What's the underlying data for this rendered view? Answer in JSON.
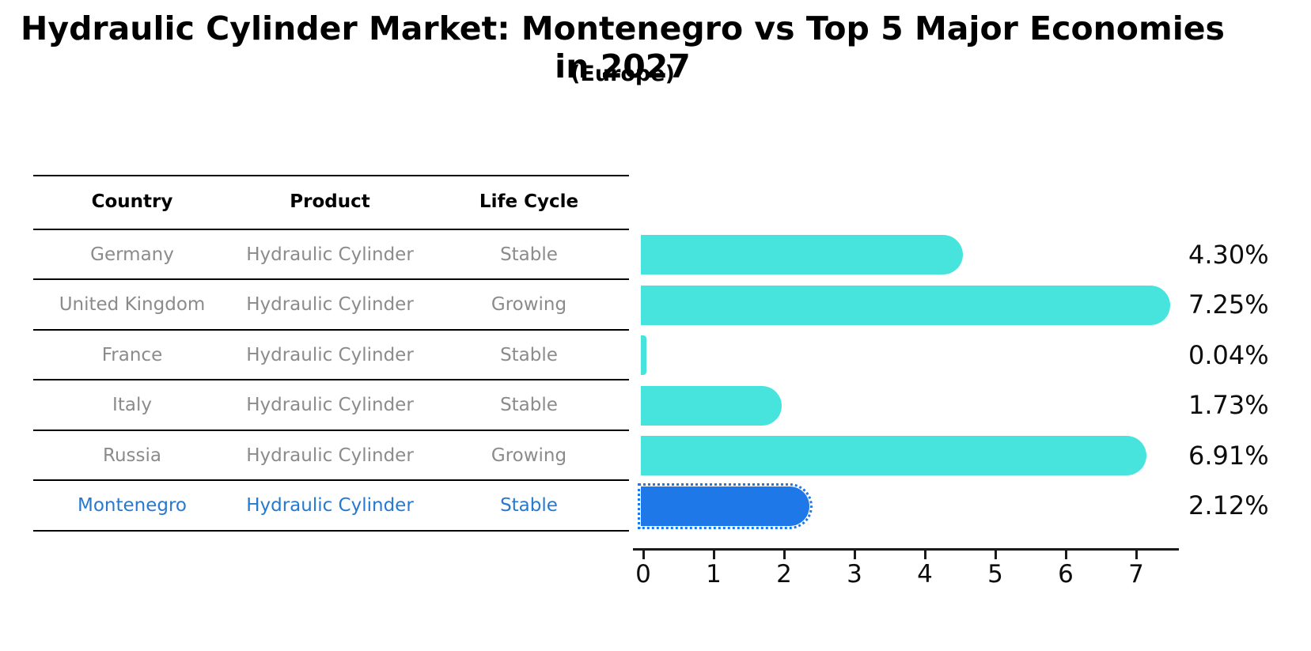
{
  "title": "Hydraulic Cylinder Market: Montenegro vs Top 5 Major Economies in 2027",
  "subtitle": "(Europe)",
  "colors": {
    "bar_default": "#47e4de",
    "bar_highlight": "#1e78e8",
    "highlight_text": "#2779cf",
    "row_text": "#8b8b8b",
    "header_text": "#000000"
  },
  "table": {
    "headers": [
      "Country",
      "Product",
      "Life Cycle"
    ],
    "rows": [
      {
        "country": "Germany",
        "product": "Hydraulic Cylinder",
        "life_cycle": "Stable"
      },
      {
        "country": "United Kingdom",
        "product": "Hydraulic Cylinder",
        "life_cycle": "Growing"
      },
      {
        "country": "France",
        "product": "Hydraulic Cylinder",
        "life_cycle": "Stable"
      },
      {
        "country": "Italy",
        "product": "Hydraulic Cylinder",
        "life_cycle": "Stable"
      },
      {
        "country": "Russia",
        "product": "Hydraulic Cylinder",
        "life_cycle": "Growing"
      },
      {
        "country": "Montenegro",
        "product": "Hydraulic Cylinder",
        "life_cycle": "Stable"
      }
    ]
  },
  "chart_data": {
    "type": "bar",
    "orientation": "horizontal",
    "title": "Hydraulic Cylinder Market: Montenegro vs Top 5 Major Economies in 2027",
    "subtitle": "(Europe)",
    "categories": [
      "Germany",
      "United Kingdom",
      "France",
      "Italy",
      "Russia",
      "Montenegro"
    ],
    "values": [
      4.3,
      7.25,
      0.04,
      1.73,
      6.91,
      2.12
    ],
    "labels": [
      "4.30%",
      "7.25%",
      "0.04%",
      "1.73%",
      "6.91%",
      "2.12%"
    ],
    "highlight_index": 5,
    "xlim": [
      0,
      7.7
    ],
    "xticks": [
      "0",
      "1",
      "2",
      "3",
      "4",
      "5",
      "6",
      "7"
    ],
    "grid": false,
    "legend": null
  }
}
